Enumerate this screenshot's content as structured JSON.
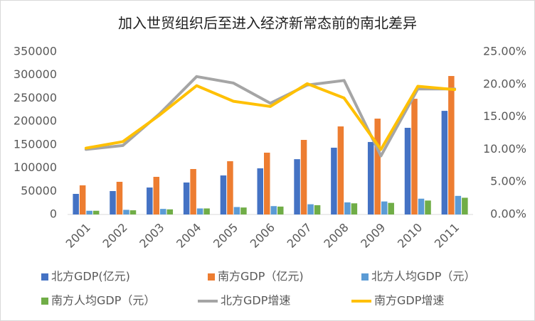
{
  "chart_data": {
    "type": "bar",
    "title": "加入世贸组织后至进入经济新常态前的南北差异",
    "categories": [
      "2001",
      "2002",
      "2003",
      "2004",
      "2005",
      "2006",
      "2007",
      "2008",
      "2009",
      "2010",
      "2011"
    ],
    "ylim": [
      0,
      350000
    ],
    "yticks": [
      0,
      50000,
      100000,
      150000,
      200000,
      250000,
      300000,
      350000
    ],
    "y2lim": [
      0,
      25
    ],
    "y2ticks": [
      {
        "value": 0,
        "label": "0.00%"
      },
      {
        "value": 5,
        "label": "5.00%"
      },
      {
        "value": 10,
        "label": "10.00%"
      },
      {
        "value": 15,
        "label": "15.00%"
      },
      {
        "value": 20,
        "label": "20.00%"
      },
      {
        "value": 25,
        "label": "25.00%"
      }
    ],
    "grid": false,
    "series": [
      {
        "name": "北方GDP(亿元)",
        "color": "#4472c4",
        "type": "bar",
        "values": [
          44300,
          50400,
          58000,
          68800,
          84000,
          99300,
          119000,
          143700,
          156000,
          186500,
          223000
        ]
      },
      {
        "name": "南方GDP（亿元)",
        "color": "#ed7d31",
        "type": "bar",
        "values": [
          62700,
          70300,
          81000,
          97800,
          114600,
          133000,
          160500,
          189500,
          206300,
          249000,
          298000
        ]
      },
      {
        "name": "北方人均GDP（元）",
        "color": "#5b9bd5",
        "type": "bar",
        "values": [
          8000,
          10000,
          12000,
          13000,
          16000,
          18000,
          22000,
          26000,
          28000,
          34000,
          40000
        ]
      },
      {
        "name": "南方人均GDP（元）",
        "color": "#70ad47",
        "type": "bar",
        "values": [
          8000,
          9000,
          11000,
          13000,
          15000,
          17000,
          20000,
          24000,
          25000,
          30000,
          36000
        ]
      },
      {
        "name": "北方GDP增速",
        "color": "#a5a5a5",
        "type": "line",
        "axis": "y2",
        "values": [
          10.0,
          10.6,
          15.5,
          21.2,
          20.2,
          17.1,
          19.9,
          20.6,
          9.0,
          19.3,
          19.3
        ]
      },
      {
        "name": "南方GDP增速",
        "color": "#ffc000",
        "type": "line",
        "axis": "y2",
        "values": [
          10.2,
          11.2,
          15.3,
          19.8,
          17.4,
          16.6,
          20.1,
          17.9,
          10.0,
          19.7,
          19.2
        ]
      }
    ]
  }
}
